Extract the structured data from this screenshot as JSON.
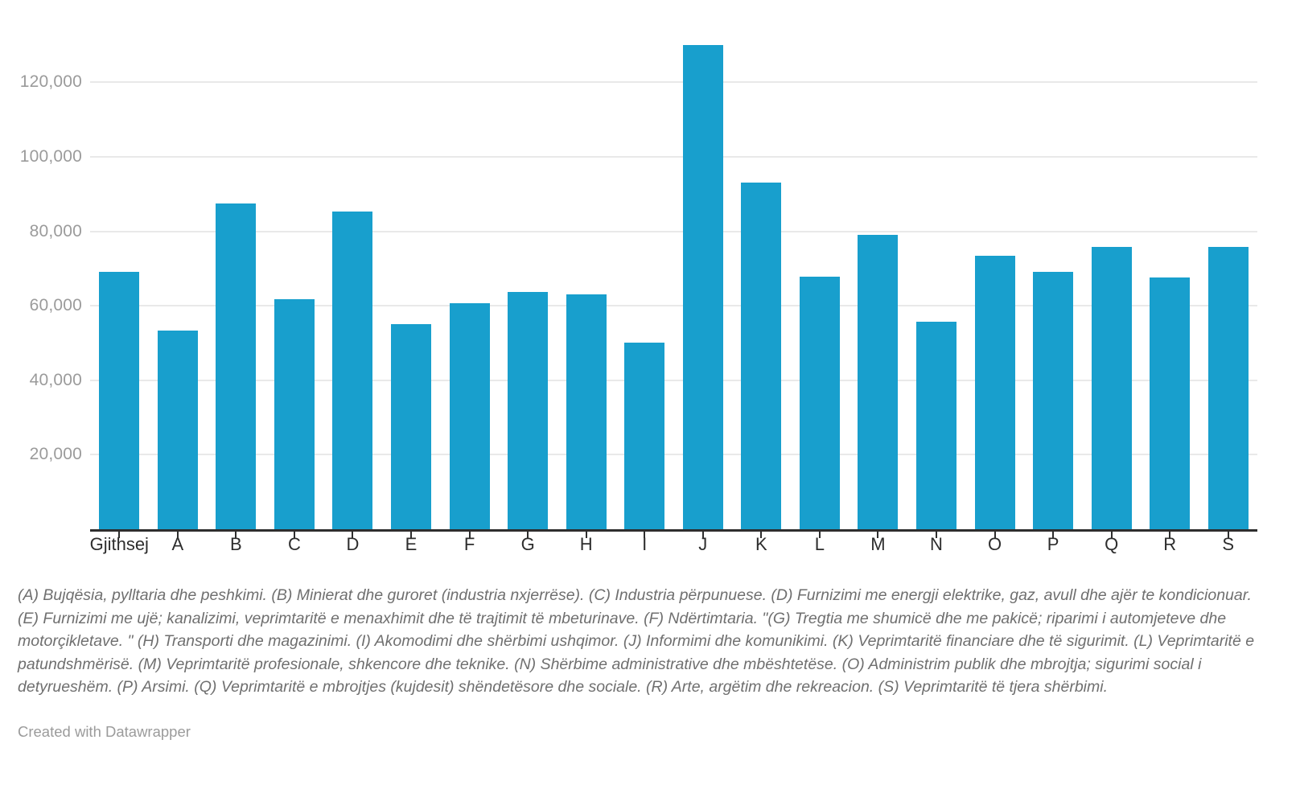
{
  "chart_data": {
    "type": "bar",
    "categories": [
      "Gjithsej",
      "A",
      "B",
      "C",
      "D",
      "E",
      "F",
      "G",
      "H",
      "I",
      "J",
      "K",
      "L",
      "M",
      "N",
      "O",
      "P",
      "Q",
      "R",
      "S"
    ],
    "values": [
      69000,
      53300,
      87400,
      61700,
      85300,
      55000,
      60600,
      63700,
      63000,
      50000,
      130000,
      93100,
      67800,
      79100,
      55800,
      73400,
      69000,
      75700,
      67600,
      75700
    ],
    "title": "",
    "xlabel": "",
    "ylabel": "",
    "ylim": [
      0,
      130000
    ],
    "yticks": [
      20000,
      40000,
      60000,
      80000,
      100000,
      120000
    ],
    "ytick_labels": [
      "20,000",
      "40,000",
      "60,000",
      "80,000",
      "100,000",
      "120,000"
    ],
    "grid": "horizontal",
    "legend": "none",
    "bar_color": "#189fcd"
  },
  "colors": {
    "bar": "#189fcd",
    "axis": "#2e2e2e",
    "grid": "#e9e9e9",
    "ytick_text": "#9b9b9b",
    "xtick_text": "#2d2d2d",
    "note_text": "#6f6f6f",
    "attribution_text": "#9b9b9b"
  },
  "footer": {
    "note": "(A) Bujqësia, pylltaria dhe peshkimi. (B) Minierat dhe guroret (industria nxjerrëse). (C) Industria përpunuese. (D) Furnizimi me energji elektrike, gaz, avull dhe ajër te kondicionuar. (E) Furnizimi me ujë; kanalizimi, veprimtaritë e menaxhimit dhe të trajtimit të mbeturinave. (F) Ndërtimtaria. \"(G) Tregtia me shumicë dhe me pakicë; riparimi i automjeteve dhe motorçikletave. \" (H) Transporti dhe magazinimi. (I) Akomodimi dhe shërbimi ushqimor. (J) Informimi dhe komunikimi. (K) Veprimtaritë financiare dhe të sigurimit. (L) Veprimtaritë e patundshmërisë. (M) Veprimtaritë profesionale, shkencore dhe teknike. (N) Shërbime administrative dhe mbështetëse. (O) Administrim publik dhe mbrojtja; sigurimi social i detyrueshëm. (P) Arsimi. (Q) Veprimtaritë e mbrojtjes (kujdesit) shëndetësore dhe sociale. (R) Arte, argëtim dhe rekreacion. (S) Veprimtaritë të tjera shërbimi.",
    "attribution": "Created with Datawrapper"
  }
}
